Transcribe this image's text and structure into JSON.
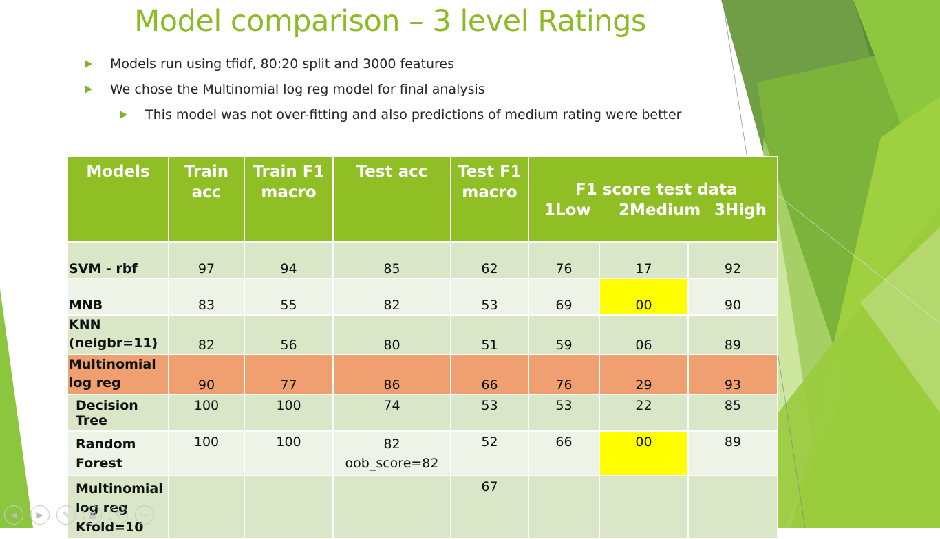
{
  "slide": {
    "title": "Model comparison – 3 level Ratings",
    "bullets": [
      "Models run using tfidf, 80:20 split and 3000 features",
      "We chose the Multinomial log reg model for final analysis",
      "This model was not over-fitting and also predictions of medium rating were better"
    ]
  },
  "table": {
    "headers": {
      "models": "Models",
      "train_acc_1": "Train",
      "train_acc_2": "acc",
      "train_f1_1": "Train F1",
      "train_f1_2": "macro",
      "test_acc": "Test acc",
      "test_f1_1": "Test F1",
      "test_f1_2": "macro",
      "f1_group": "F1  score test data",
      "f1_low": "1Low",
      "f1_med": "2Medium",
      "f1_high": "3High"
    },
    "rows": [
      {
        "name1": "SVM - rbf",
        "name2": "",
        "train_acc": "97",
        "train_f1": "94",
        "test_acc": "85",
        "test_acc_note": "",
        "test_f1": "62",
        "low": "76",
        "med": "17",
        "high": "92"
      },
      {
        "name1": "MNB",
        "name2": "",
        "train_acc": "83",
        "train_f1": "55",
        "test_acc": "82",
        "test_acc_note": "",
        "test_f1": "53",
        "low": "69",
        "med": "00",
        "high": "90"
      },
      {
        "name1": "KNN",
        "name2": "(neigbr=11)",
        "train_acc": "82",
        "train_f1": "56",
        "test_acc": "80",
        "test_acc_note": "",
        "test_f1": "51",
        "low": "59",
        "med": "06",
        "high": "89"
      },
      {
        "name1": "Multinomial",
        "name2": "log reg",
        "train_acc": "90",
        "train_f1": "77",
        "test_acc": "86",
        "test_acc_note": "",
        "test_f1": "66",
        "low": "76",
        "med": "29",
        "high": "93"
      },
      {
        "name1": "Decision Tree",
        "name2": "",
        "train_acc": "100",
        "train_f1": "100",
        "test_acc": "74",
        "test_acc_note": "",
        "test_f1": "53",
        "low": "53",
        "med": "22",
        "high": "85"
      },
      {
        "name1": "Random",
        "name2": "Forest",
        "train_acc": "100",
        "train_f1": "100",
        "test_acc": "82",
        "test_acc_note": "oob_score=82",
        "test_f1": "52",
        "low": "66",
        "med": "00",
        "high": "89"
      },
      {
        "name1": "Multinomial",
        "name2": "log reg",
        "name3": "Kfold=10",
        "train_acc": "",
        "train_f1": "",
        "test_acc": "",
        "test_acc_note": "",
        "test_f1": "67",
        "low": "",
        "med": "",
        "high": ""
      }
    ]
  },
  "colors": {
    "title": "#8cbb26",
    "header_bg": "#8fbe25",
    "row_dark": "#d9e7c8",
    "row_light": "#edf3e6",
    "highlight_row": "#f0a070",
    "highlight_cell": "#ffff00"
  },
  "controls": {
    "icons": [
      "prev-icon",
      "play-icon",
      "pen-icon",
      "slides-icon",
      "zoom-icon",
      "more-icon"
    ]
  }
}
